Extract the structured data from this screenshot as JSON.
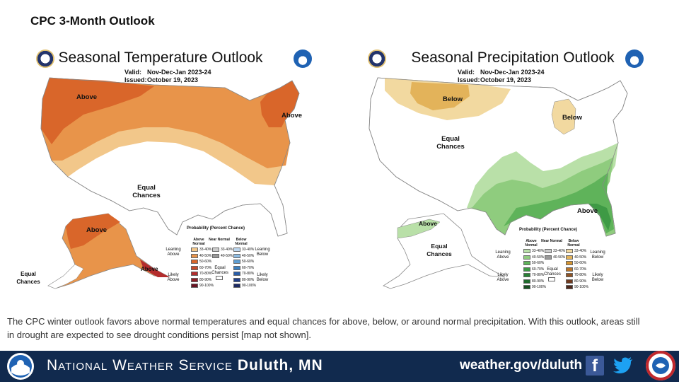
{
  "slide_title": "CPC 3-Month Outlook",
  "temperature": {
    "title": "Seasonal Temperature Outlook",
    "valid_label": "Valid:",
    "valid_value": "Nov-Dec-Jan 2023-24",
    "issued_label": "Issued:",
    "issued_value": "October 19, 2023",
    "labels": {
      "above_west": "Above",
      "above_ne": "Above",
      "equal_chances": "Equal Chances",
      "above_alaska": "Above",
      "above_alaska_se": "Above",
      "equal_chances_alaska": "Equal Chances"
    },
    "legend": {
      "title": "Probability (Percent Chance)",
      "col_left": "Above Normal",
      "col_mid": "Near Normal",
      "col_right": "Below Normal",
      "left_top": "Leaning Above",
      "left_bottom": "Likely Above",
      "right_top": "Leaning Below",
      "right_bottom": "Likely Below",
      "mid_box": "Equal Chances",
      "left_pcts": [
        "33-40%",
        "40-50%",
        "50-60%",
        "60-70%",
        "70-80%",
        "80-90%",
        "90-100%"
      ],
      "mid_pcts": [
        "33-40%",
        "40-50%"
      ],
      "right_pcts": [
        "33-40%",
        "40-50%",
        "50-60%",
        "60-70%",
        "70-80%",
        "80-90%",
        "90-100%"
      ],
      "left_colors": [
        "#f2c78a",
        "#e8944a",
        "#d9662a",
        "#c64a2a",
        "#b32d2d",
        "#8f1f28",
        "#6a1422"
      ],
      "mid_colors": [
        "#cccccc",
        "#999999"
      ],
      "right_colors": [
        "#bcd6ee",
        "#8fbde3",
        "#5f9fd3",
        "#3a7fc0",
        "#2a5ea8",
        "#22408a",
        "#1d2a64"
      ]
    }
  },
  "precipitation": {
    "title": "Seasonal Precipitation Outlook",
    "valid_label": "Valid:",
    "valid_value": "Nov-Dec-Jan 2023-24",
    "issued_label": "Issued:",
    "issued_value": "October 19, 2023",
    "labels": {
      "below_north": "Below",
      "below_michigan": "Below",
      "equal_chances": "Equal Chances",
      "above_southeast": "Above",
      "above_alaska": "Above",
      "equal_chances_alaska": "Equal Chances"
    },
    "legend": {
      "title": "Probability (Percent Chance)",
      "col_left": "Above Normal",
      "col_mid": "Near Normal",
      "col_right": "Below Normal",
      "left_top": "Leaning Above",
      "left_bottom": "Likely Above",
      "right_top": "Leaning Below",
      "right_bottom": "Likely Below",
      "mid_box": "Equal Chances",
      "left_pcts": [
        "33-40%",
        "40-50%",
        "50-60%",
        "60-70%",
        "70-80%",
        "80-90%",
        "90-100%"
      ],
      "mid_pcts": [
        "33-40%",
        "40-50%"
      ],
      "right_pcts": [
        "33-40%",
        "40-50%",
        "50-60%",
        "60-70%",
        "70-80%",
        "80-90%",
        "90-100%"
      ],
      "left_colors": [
        "#b9e0a8",
        "#8fcc7e",
        "#5fb35a",
        "#3e9a45",
        "#2a7f36",
        "#1f6a2c",
        "#164f20"
      ],
      "mid_colors": [
        "#cccccc",
        "#999999"
      ],
      "right_colors": [
        "#f2d9a0",
        "#e3b35a",
        "#d49431",
        "#b8742a",
        "#8f5426",
        "#6e3a20",
        "#4e281a"
      ]
    }
  },
  "map_colors": {
    "temp_33_40": "#f2c78a",
    "temp_40_50": "#e8944a",
    "temp_50_60": "#d9662a",
    "precip_wet_33_40": "#b9e0a8",
    "precip_wet_40_50": "#8fcc7e",
    "precip_wet_50_60": "#5fb35a",
    "precip_wet_60_70": "#3e9a45",
    "precip_dry_33_40": "#f2d9a0",
    "precip_dry_40_50": "#e3b35a"
  },
  "caption": "The CPC winter outlook favors above normal temperatures and equal chances for above, below, or around normal precipitation. With this outlook, areas still in drought are expected to see drought conditions persist [map not shown].",
  "footer": {
    "name_prefix": "National Weather Service",
    "name_office": "Duluth, MN",
    "url": "weather.gov/duluth",
    "facebook_glyph": "f"
  }
}
